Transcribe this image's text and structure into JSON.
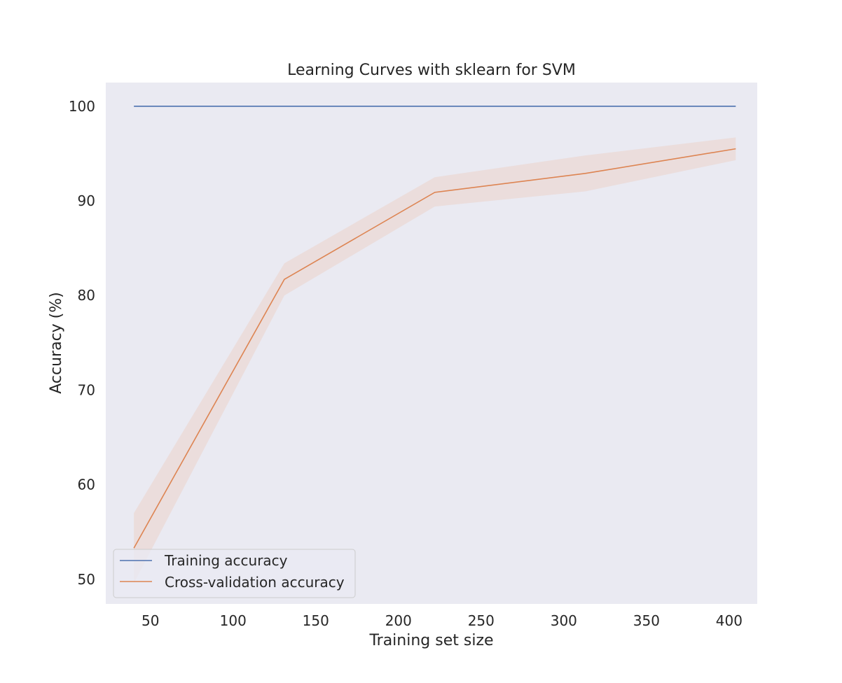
{
  "chart_data": {
    "type": "line",
    "title": "Learning Curves with sklearn for SVM",
    "xlabel": "Training set size",
    "ylabel": "Accuracy (%)",
    "xlim": [
      23,
      417
    ],
    "ylim": [
      47.4,
      102.5
    ],
    "xticks": [
      50,
      100,
      150,
      200,
      250,
      300,
      350,
      400
    ],
    "yticks": [
      50,
      60,
      70,
      80,
      90,
      100
    ],
    "grid": false,
    "background": "#eaeaf2",
    "legend_position": "lower left",
    "x": [
      40,
      131,
      222,
      313,
      404
    ],
    "series": [
      {
        "name": "Training accuracy",
        "color": "#4c72b0",
        "values": [
          100,
          100,
          100,
          100,
          100
        ]
      },
      {
        "name": "Cross-validation accuracy",
        "color": "#dd8452",
        "values": [
          53.3,
          81.7,
          90.9,
          92.9,
          95.5
        ],
        "band_lower": [
          49.6,
          80.0,
          89.4,
          91.0,
          94.3
        ],
        "band_upper": [
          57.0,
          83.4,
          92.5,
          94.8,
          96.7
        ],
        "band_color": "#ebdad8"
      }
    ]
  }
}
